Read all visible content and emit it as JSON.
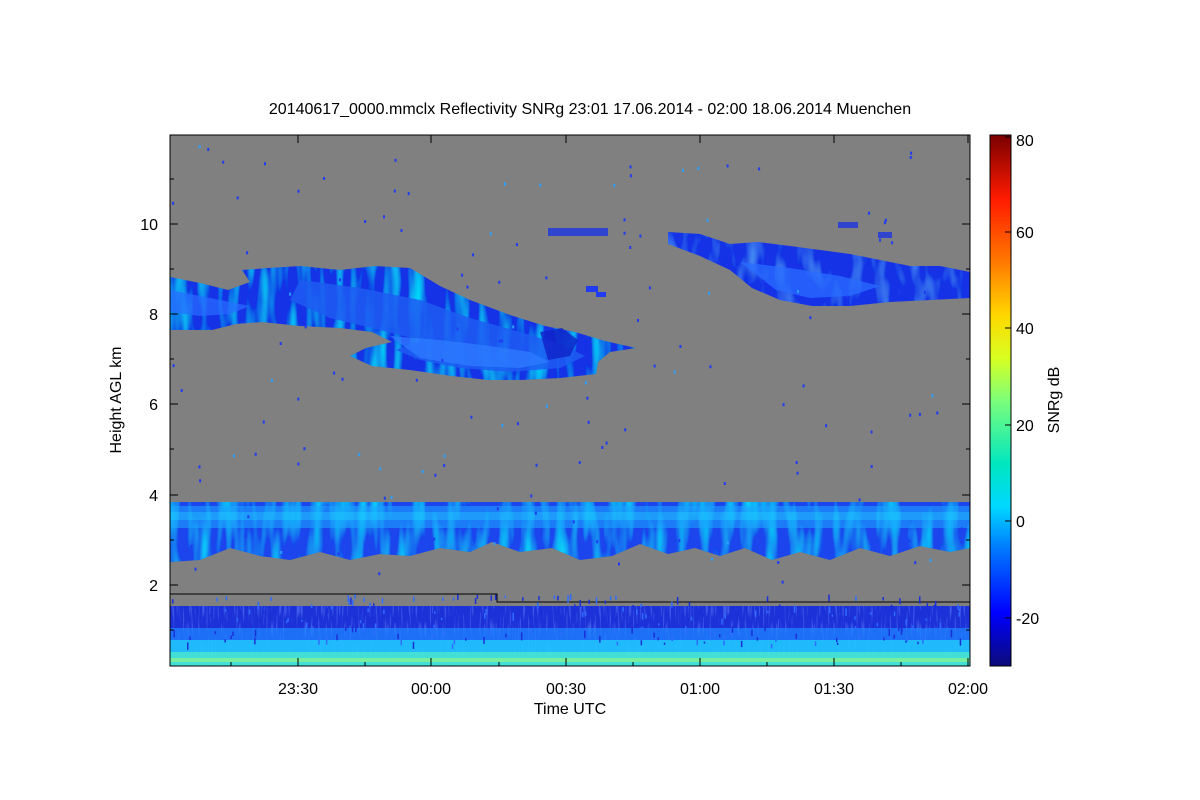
{
  "chart_data": {
    "type": "heatmap",
    "title": "20140617_0000.mmclx Reflectivity SNRg   23:01 17.06.2014 - 02:00 18.06.2014 Muenchen",
    "xlabel": "Time UTC",
    "ylabel": "Height AGL km",
    "x_range": [
      "23:01",
      "02:00"
    ],
    "x_ticks": [
      "23:30",
      "00:00",
      "00:30",
      "01:00",
      "01:30",
      "02:00"
    ],
    "y_range": [
      0,
      12
    ],
    "y_ticks": [
      "2",
      "4",
      "6",
      "8",
      "10"
    ],
    "colorbar": {
      "label": "SNRg dB",
      "range": [
        -30,
        80
      ],
      "ticks": [
        "-20",
        "0",
        "20",
        "40",
        "60",
        "80"
      ]
    },
    "background_color": "#808080",
    "no_data_line_height_km": [
      {
        "from": "23:01",
        "to": "00:15",
        "height": 1.8
      },
      {
        "from": "00:15",
        "to": "02:00",
        "height": 1.6
      }
    ],
    "features": [
      {
        "name": "upper cirrus layer (left)",
        "time_range": [
          "23:01",
          "00:47"
        ],
        "height_range_km": [
          6.6,
          9.0
        ],
        "snr_db_range": [
          -28,
          -12
        ]
      },
      {
        "name": "upper cirrus layer (right)",
        "time_range": [
          "00:53",
          "02:00"
        ],
        "height_range_km": [
          8.2,
          9.7
        ],
        "snr_db_range": [
          -28,
          -15
        ]
      },
      {
        "name": "mid-level cloud layer",
        "time_range": [
          "23:01",
          "02:00"
        ],
        "height_range_km": [
          2.6,
          3.9
        ],
        "snr_db_range": [
          -20,
          5
        ]
      },
      {
        "name": "boundary layer clutter",
        "time_range": [
          "23:01",
          "02:00"
        ],
        "height_range_km": [
          0.0,
          1.6
        ],
        "snr_db_range": [
          -20,
          20
        ]
      }
    ]
  }
}
